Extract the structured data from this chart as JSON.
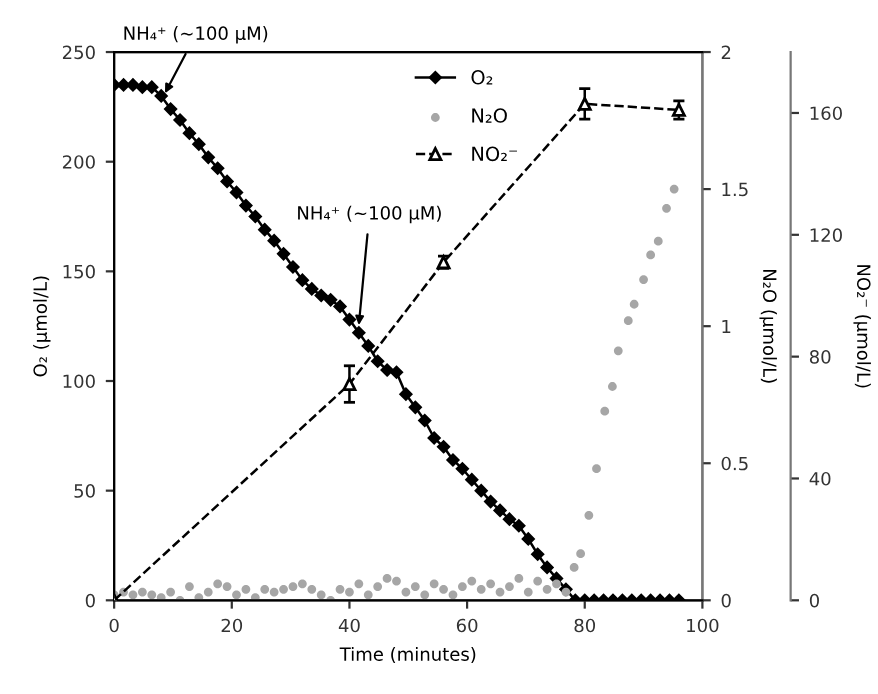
{
  "chart_data": {
    "type": "line",
    "xlabel": "Time (minutes)",
    "ylabel": "O₂ (μmol/L)",
    "y2label": "N₂O (μmol/L)",
    "y3label": "NO₂⁻ (μmol/L)",
    "xlim": [
      0,
      100
    ],
    "xticks": [
      0,
      20,
      40,
      60,
      80,
      100
    ],
    "ylim": [
      0,
      250
    ],
    "yticks": [
      0,
      50,
      100,
      150,
      200,
      250
    ],
    "y2lim": [
      0,
      2
    ],
    "y2ticks": [
      0,
      0.5,
      1,
      1.5,
      2
    ],
    "y3lim": [
      0,
      180
    ],
    "y3ticks": [
      0,
      40,
      80,
      120,
      160
    ],
    "grid": false,
    "legend": "top",
    "annotations": [
      {
        "text": "NH₄⁺ (~100 μM)",
        "x": 8.2,
        "y": 229
      },
      {
        "text": "NH₄⁺ (~100 μM)",
        "x": 41.5,
        "y": 123
      }
    ],
    "series": [
      {
        "name": "O₂",
        "color": "#000000",
        "marker": "diamond",
        "line_style": "solid",
        "x": [
          0,
          1.6,
          3.2,
          4.8,
          6.4,
          8.0,
          9.6,
          11.2,
          12.8,
          14.4,
          16.0,
          17.6,
          19.2,
          20.8,
          22.4,
          24.0,
          25.6,
          27.2,
          28.8,
          30.4,
          32.0,
          33.6,
          35.2,
          36.8,
          38.4,
          40.0,
          41.6,
          43.2,
          44.8,
          46.4,
          48.0,
          49.6,
          51.2,
          52.8,
          54.4,
          56.0,
          57.6,
          59.2,
          60.8,
          62.4,
          64.0,
          65.6,
          67.2,
          68.8,
          70.4,
          72.0,
          73.6,
          75.2,
          76.8,
          78.4,
          80.0,
          81.6,
          83.2,
          84.8,
          86.4,
          88.0,
          89.6,
          91.2,
          92.8,
          94.4,
          96.0
        ],
        "values": [
          235,
          235,
          235,
          234,
          234,
          230,
          224,
          219,
          213,
          208,
          202,
          197,
          191,
          186,
          180,
          175,
          169,
          164,
          158,
          152,
          146,
          142,
          139,
          137,
          134,
          128,
          122,
          116,
          109,
          105,
          104,
          94,
          88,
          82,
          74,
          70,
          64,
          60,
          55,
          50,
          45,
          41,
          37,
          34,
          28,
          21,
          15,
          10,
          5,
          0,
          0,
          0,
          0,
          0,
          0,
          0,
          0,
          0,
          0,
          0,
          0
        ]
      },
      {
        "name": "N₂O",
        "type": "scatter",
        "axis": "y2",
        "color": "#a6a6a6",
        "marker": "circle",
        "x": [
          0,
          1.6,
          3.2,
          4.8,
          6.4,
          8.0,
          9.6,
          11.2,
          12.8,
          14.4,
          16.0,
          17.6,
          19.2,
          20.8,
          22.4,
          24.0,
          25.6,
          27.2,
          28.8,
          30.4,
          32.0,
          33.6,
          35.2,
          36.8,
          38.4,
          40.0,
          41.6,
          43.2,
          44.8,
          46.4,
          48.0,
          49.6,
          51.2,
          52.8,
          54.4,
          56.0,
          57.6,
          59.2,
          60.8,
          62.4,
          64.0,
          65.6,
          67.2,
          68.8,
          70.4,
          72.0,
          73.6,
          75.2,
          76.8,
          78.2,
          79.3,
          80.7,
          82.0,
          83.4,
          84.7,
          85.7,
          87.4,
          88.4,
          90.0,
          91.2,
          92.5,
          93.9,
          95.2
        ],
        "values": [
          0.02,
          0.03,
          0.02,
          0.03,
          0.02,
          0.01,
          0.03,
          0.0,
          0.05,
          0.01,
          0.03,
          0.06,
          0.05,
          0.02,
          0.04,
          0.01,
          0.04,
          0.03,
          0.04,
          0.05,
          0.06,
          0.04,
          0.02,
          0.0,
          0.04,
          0.03,
          0.06,
          0.02,
          0.05,
          0.08,
          0.07,
          0.03,
          0.05,
          0.02,
          0.06,
          0.04,
          0.02,
          0.05,
          0.07,
          0.04,
          0.06,
          0.03,
          0.05,
          0.08,
          0.03,
          0.07,
          0.04,
          0.06,
          0.03,
          0.12,
          0.17,
          0.31,
          0.48,
          0.69,
          0.78,
          0.91,
          1.02,
          1.08,
          1.17,
          1.26,
          1.31,
          1.43,
          1.5
        ]
      },
      {
        "name": "NO₂⁻",
        "axis": "y3",
        "color": "#000000",
        "marker": "triangle",
        "line_style": "dashed",
        "x": [
          0,
          40,
          56,
          80,
          96
        ],
        "values": [
          0,
          71,
          111,
          163,
          161
        ],
        "errors": [
          null,
          6,
          2,
          5,
          3
        ]
      }
    ]
  }
}
